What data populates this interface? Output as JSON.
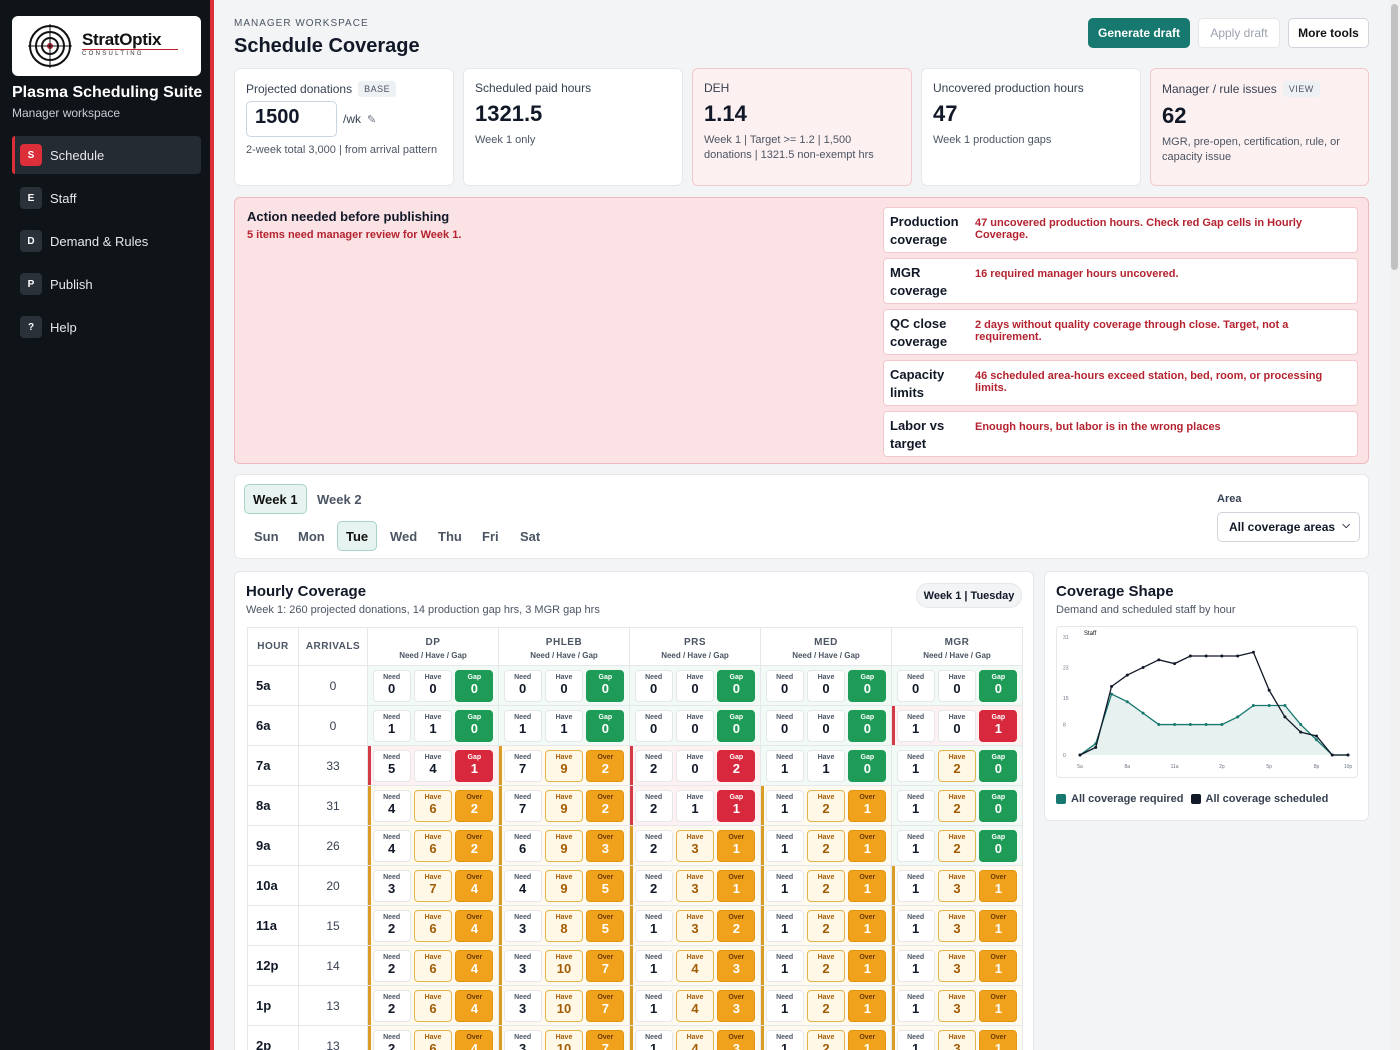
{
  "brand": {
    "logo_text": "StratOptix",
    "logo_sub": "CONSULTING"
  },
  "app": {
    "title": "Plasma Scheduling Suite",
    "subtitle": "Manager workspace"
  },
  "nav": [
    {
      "badge": "S",
      "label": "Schedule",
      "active": true
    },
    {
      "badge": "E",
      "label": "Staff"
    },
    {
      "badge": "D",
      "label": "Demand & Rules"
    },
    {
      "badge": "P",
      "label": "Publish"
    },
    {
      "badge": "?",
      "label": "Help"
    }
  ],
  "header": {
    "eyebrow": "MANAGER WORKSPACE",
    "title": "Schedule Coverage"
  },
  "actions": {
    "generate": "Generate draft",
    "apply": "Apply draft",
    "more": "More tools"
  },
  "kpis": {
    "donations": {
      "label": "Projected donations",
      "tag": "BASE",
      "value": "1500",
      "unit": "/wk",
      "note": "2-week total 3,000 | from arrival pattern"
    },
    "paid_hours": {
      "label": "Scheduled paid hours",
      "value": "1321.5",
      "note": "Week 1 only"
    },
    "deh": {
      "label": "DEH",
      "value": "1.14",
      "note": "Week 1 | Target >= 1.2 | 1,500 donations | 1321.5 non-exempt hrs"
    },
    "uncovered": {
      "label": "Uncovered production hours",
      "value": "47",
      "note": "Week 1 production gaps"
    },
    "issues": {
      "label": "Manager / rule issues",
      "tag": "VIEW",
      "value": "62",
      "note": "MGR, pre-open, certification, rule, or capacity issue"
    }
  },
  "action_panel": {
    "title": "Action needed before publishing",
    "subtitle": "5 items need manager review for Week 1.",
    "items": [
      {
        "name": "Production coverage",
        "desc": "47 uncovered production hours. Check red Gap cells in Hourly Coverage."
      },
      {
        "name": "MGR coverage",
        "desc": "16 required manager hours uncovered."
      },
      {
        "name": "QC close coverage",
        "desc": "2 days without quality coverage through close. Target, not a requirement."
      },
      {
        "name": "Capacity limits",
        "desc": "46 scheduled area-hours exceed station, bed, room, or processing limits."
      },
      {
        "name": "Labor vs target",
        "desc": "Enough hours, but labor is in the wrong places"
      }
    ]
  },
  "filters": {
    "weeks": [
      "Week 1",
      "Week 2"
    ],
    "active_week": "Week 1",
    "days": [
      "Sun",
      "Mon",
      "Tue",
      "Wed",
      "Thu",
      "Fri",
      "Sat"
    ],
    "active_day": "Tue",
    "area_label": "Area",
    "area_value": "All coverage areas"
  },
  "hourly": {
    "title": "Hourly Coverage",
    "subtitle": "Week 1: 260 projected donations, 14 production gap hrs, 3 MGR gap hrs",
    "pill": "Week 1 | Tuesday",
    "col_hour": "HOUR",
    "col_arrivals": "ARRIVALS",
    "sub_header": "Need / Have / Gap",
    "need_label": "Need",
    "have_label": "Have",
    "gap_label": "Gap",
    "over_label": "Over",
    "areas": [
      "DP",
      "PHLEB",
      "PRS",
      "MED",
      "MGR"
    ],
    "rows": [
      {
        "hour": "5a",
        "arrivals": 0,
        "cells": [
          [
            0,
            0,
            "gap",
            0
          ],
          [
            0,
            0,
            "gap",
            0
          ],
          [
            0,
            0,
            "gap",
            0
          ],
          [
            0,
            0,
            "gap",
            0
          ],
          [
            0,
            0,
            "gap",
            0
          ]
        ]
      },
      {
        "hour": "6a",
        "arrivals": 0,
        "cells": [
          [
            1,
            1,
            "gap",
            0
          ],
          [
            1,
            1,
            "gap",
            0
          ],
          [
            0,
            0,
            "gap",
            0
          ],
          [
            0,
            0,
            "gap",
            0
          ],
          [
            1,
            0,
            "gap",
            1
          ]
        ]
      },
      {
        "hour": "7a",
        "arrivals": 33,
        "cells": [
          [
            5,
            4,
            "gap",
            1
          ],
          [
            7,
            9,
            "over",
            2
          ],
          [
            2,
            0,
            "gap",
            2
          ],
          [
            1,
            1,
            "gap",
            0
          ],
          [
            1,
            2,
            "gap",
            0
          ]
        ]
      },
      {
        "hour": "8a",
        "arrivals": 31,
        "cells": [
          [
            4,
            6,
            "over",
            2
          ],
          [
            7,
            9,
            "over",
            2
          ],
          [
            2,
            1,
            "gap",
            1
          ],
          [
            1,
            2,
            "over",
            1
          ],
          [
            1,
            2,
            "gap",
            0
          ]
        ]
      },
      {
        "hour": "9a",
        "arrivals": 26,
        "cells": [
          [
            4,
            6,
            "over",
            2
          ],
          [
            6,
            9,
            "over",
            3
          ],
          [
            2,
            3,
            "over",
            1
          ],
          [
            1,
            2,
            "over",
            1
          ],
          [
            1,
            2,
            "gap",
            0
          ]
        ]
      },
      {
        "hour": "10a",
        "arrivals": 20,
        "cells": [
          [
            3,
            7,
            "over",
            4
          ],
          [
            4,
            9,
            "over",
            5
          ],
          [
            2,
            3,
            "over",
            1
          ],
          [
            1,
            2,
            "over",
            1
          ],
          [
            1,
            3,
            "over",
            1
          ]
        ]
      },
      {
        "hour": "11a",
        "arrivals": 15,
        "cells": [
          [
            2,
            6,
            "over",
            4
          ],
          [
            3,
            8,
            "over",
            5
          ],
          [
            1,
            3,
            "over",
            2
          ],
          [
            1,
            2,
            "over",
            1
          ],
          [
            1,
            3,
            "over",
            1
          ]
        ]
      },
      {
        "hour": "12p",
        "arrivals": 14,
        "cells": [
          [
            2,
            6,
            "over",
            4
          ],
          [
            3,
            10,
            "over",
            7
          ],
          [
            1,
            4,
            "over",
            3
          ],
          [
            1,
            2,
            "over",
            1
          ],
          [
            1,
            3,
            "over",
            1
          ]
        ]
      },
      {
        "hour": "1p",
        "arrivals": 13,
        "cells": [
          [
            2,
            6,
            "over",
            4
          ],
          [
            3,
            10,
            "over",
            7
          ],
          [
            1,
            4,
            "over",
            3
          ],
          [
            1,
            2,
            "over",
            1
          ],
          [
            1,
            3,
            "over",
            1
          ]
        ]
      },
      {
        "hour": "2p",
        "arrivals": 13,
        "cells": [
          [
            2,
            6,
            "over",
            4
          ],
          [
            3,
            10,
            "over",
            7
          ],
          [
            1,
            4,
            "over",
            3
          ],
          [
            1,
            2,
            "over",
            1
          ],
          [
            1,
            3,
            "over",
            1
          ]
        ]
      }
    ]
  },
  "shape": {
    "title": "Coverage Shape",
    "subtitle": "Demand and scheduled staff by hour",
    "legend": [
      {
        "name": "All coverage required",
        "color": "#16786e"
      },
      {
        "name": "All coverage scheduled",
        "color": "#111827"
      }
    ]
  },
  "chart_data": {
    "type": "line",
    "ylabel": "Staff",
    "x": [
      "5a",
      "6a",
      "7a",
      "8a",
      "9a",
      "10a",
      "11a",
      "12p",
      "1p",
      "2p",
      "3p",
      "4p",
      "5p",
      "6p",
      "7p",
      "8p",
      "9p",
      "10p"
    ],
    "x_tick_labels": [
      "5a",
      "8a",
      "11a",
      "2p",
      "5p",
      "8p",
      "10p"
    ],
    "y_ticks": [
      0,
      8,
      15,
      23,
      31
    ],
    "ylim": [
      0,
      31
    ],
    "grid": false,
    "series": [
      {
        "name": "All coverage required",
        "color": "#16786e",
        "values": [
          0,
          3,
          16,
          14,
          11,
          8,
          8,
          8,
          8,
          8,
          10,
          13,
          13,
          13,
          8,
          4,
          0,
          0
        ]
      },
      {
        "name": "All coverage scheduled",
        "color": "#111827",
        "values": [
          0,
          2,
          18,
          21,
          23,
          25,
          24,
          26,
          26,
          26,
          26,
          27,
          17,
          10,
          6,
          5,
          0,
          0
        ]
      }
    ]
  }
}
